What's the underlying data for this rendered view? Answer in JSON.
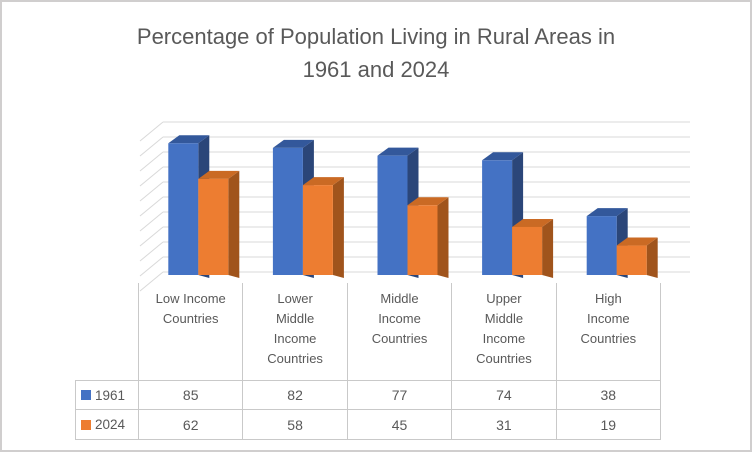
{
  "window": {
    "background": "#FFFFFF",
    "frame_color": "#D0CECE"
  },
  "title": {
    "text": "Percentage of Population Living in Rural Areas in 1961 and 2024",
    "lines": [
      "Percentage of Population Living in Rural Areas in",
      "1961 and 2024"
    ],
    "color": "#595959"
  },
  "chart_data": {
    "type": "bar",
    "variant": "3d-clustered-column",
    "title": "Percentage of Population Living in Rural Areas in 1961 and 2024",
    "categories": [
      "Low Income Countries",
      "Lower Middle Income Countries",
      "Middle Income Countries",
      "Upper Middle Income Countries",
      "High Income Countries"
    ],
    "category_label_lines": [
      [
        "Low Income",
        "Countries"
      ],
      [
        "Lower",
        "Middle",
        "Income",
        "Countries"
      ],
      [
        "Middle",
        "Income",
        "Countries"
      ],
      [
        "Upper",
        "Middle",
        "Income",
        "Countries"
      ],
      [
        "High",
        "Income",
        "Countries"
      ]
    ],
    "series": [
      {
        "name": "1961",
        "color": "#4472C4",
        "color_top": "#33589B",
        "color_side": "#2B4679",
        "values": [
          85,
          82,
          77,
          74,
          38
        ]
      },
      {
        "name": "2024",
        "color": "#ED7D31",
        "color_top": "#CA6A24",
        "color_side": "#A0541C",
        "values": [
          62,
          58,
          45,
          31,
          19
        ]
      }
    ],
    "xlabel": "",
    "ylabel": "",
    "ylim": [
      0,
      100
    ],
    "gridlines": {
      "step": 10,
      "count": 11,
      "color": "#D9D9D9",
      "orientation": "horizontal-3d"
    },
    "legend_position": "data-table-left",
    "data_table_shown": true,
    "value_axis_labels_shown": false
  },
  "table": {
    "text_color": "#595959",
    "border_color": "#C9C9C9"
  }
}
